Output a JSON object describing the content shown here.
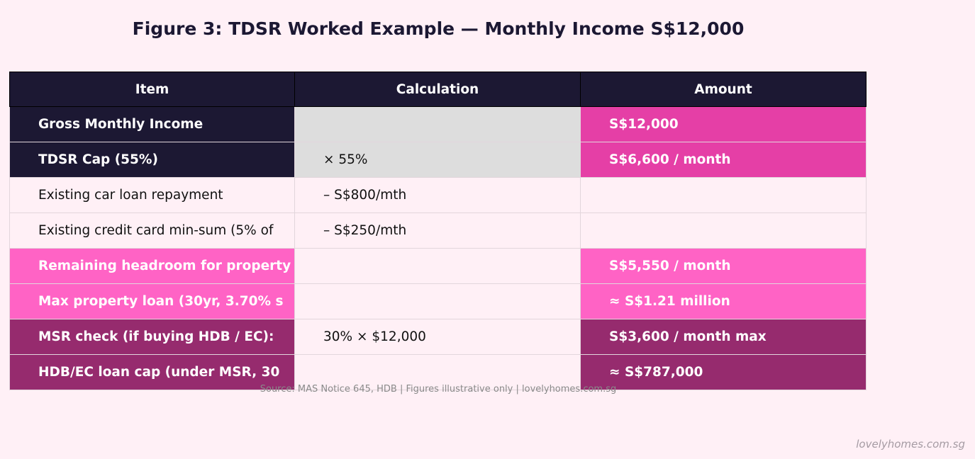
{
  "title": "Figure 3: TDSR Worked Example — Monthly Income S$12,000",
  "chart_data": {
    "type": "table",
    "columns": [
      "Item",
      "Calculation",
      "Amount"
    ],
    "rows": [
      {
        "item": "Gross Monthly Income",
        "calc": "",
        "amount": "S$12,000",
        "colors": [
          "#1c1833",
          "#dddddd",
          "#e53fa6"
        ]
      },
      {
        "item": "TDSR Cap (55%)",
        "calc": "× 55%",
        "amount": "S$6,600 / month",
        "colors": [
          "#1c1833",
          "#dddddd",
          "#e53fa6"
        ]
      },
      {
        "item": "Existing car loan repayment",
        "calc": "– S$800/mth",
        "amount": "",
        "colors": [
          "#fff0f6",
          "#fff0f6",
          "#fff0f6"
        ]
      },
      {
        "item": "Existing credit card min-sum (5% of",
        "calc": "– S$250/mth",
        "amount": "",
        "colors": [
          "#fff0f6",
          "#fff0f6",
          "#fff0f6"
        ]
      },
      {
        "item": "Remaining headroom for property",
        "calc": "",
        "amount": "S$5,550 / month",
        "colors": [
          "#ff63c5",
          "#fff0f6",
          "#ff63c5"
        ]
      },
      {
        "item": "Max property loan (30yr, 3.70% s",
        "calc": "",
        "amount": "≈ S$1.21 million",
        "colors": [
          "#ff63c5",
          "#fff0f6",
          "#ff63c5"
        ]
      },
      {
        "item": "MSR check (if buying HDB / EC):",
        "calc": "30% × $12,000",
        "amount": "S$3,600 / month max",
        "colors": [
          "#962b6e",
          "#fff0f6",
          "#962b6e"
        ]
      },
      {
        "item": "HDB/EC loan cap (under MSR, 30",
        "calc": "",
        "amount": "≈ S$787,000",
        "colors": [
          "#962b6e",
          "#fff0f6",
          "#962b6e"
        ]
      }
    ]
  },
  "source": "Source: MAS Notice 645, HDB | Figures illustrative only | lovelyhomes.com.sg",
  "watermark": "lovelyhomes.com.sg"
}
